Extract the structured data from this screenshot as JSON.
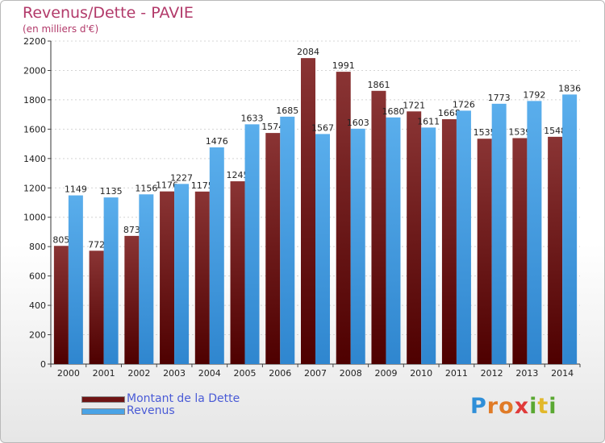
{
  "header": {
    "title": "Revenus/Dette - PAVIE",
    "subtitle": "(en milliers d'€)"
  },
  "legend": {
    "items": [
      {
        "label": "Montant de la Dette",
        "color": "#6e1414"
      },
      {
        "label": "Revenus",
        "color": "#4aa3e6"
      }
    ]
  },
  "logo": {
    "letters": [
      {
        "ch": "P",
        "color": "#2f8fd8"
      },
      {
        "ch": "r",
        "color": "#e07b27"
      },
      {
        "ch": "o",
        "color": "#e07b27"
      },
      {
        "ch": "x",
        "color": "#e03a3a"
      },
      {
        "ch": "i",
        "color": "#5aa832"
      },
      {
        "ch": "t",
        "color": "#e2b82b"
      },
      {
        "ch": "i",
        "color": "#5aa832"
      }
    ]
  },
  "chart_data": {
    "type": "bar",
    "title": "Revenus/Dette - PAVIE",
    "subtitle": "(en milliers d'€)",
    "categories": [
      "2000",
      "2001",
      "2002",
      "2003",
      "2004",
      "2005",
      "2006",
      "2007",
      "2008",
      "2009",
      "2010",
      "2011",
      "2012",
      "2013",
      "2014"
    ],
    "series": [
      {
        "name": "Montant de la Dette",
        "color": "#6e1414",
        "values": [
          805,
          772,
          873,
          1176,
          1175,
          1245,
          1574,
          2084,
          1991,
          1861,
          1721,
          1668,
          1535,
          1539,
          1548
        ],
        "labels": [
          "805",
          "772",
          "873",
          "1176",
          "1175",
          "1245",
          "1574",
          "2084",
          "1991",
          "1861",
          "1721",
          "1668",
          "1535",
          "1539",
          "1548"
        ]
      },
      {
        "name": "Revenus",
        "color": "#4aa3e6",
        "values": [
          1149,
          1135,
          1156,
          1227,
          1476,
          1633,
          1685,
          1567,
          1603,
          1680,
          1611,
          1726,
          1773,
          1792,
          1836
        ],
        "labels": [
          "1149",
          "1135",
          "1156",
          "1227",
          "1476",
          "1633",
          "1685",
          "1567",
          "1603",
          "1680",
          "1611",
          "1726",
          "1773",
          "1792",
          "1836"
        ]
      }
    ],
    "ylim": [
      0,
      2200
    ],
    "yticks": [
      0,
      200,
      400,
      600,
      800,
      1000,
      1200,
      1400,
      1600,
      1800,
      2000,
      2200
    ],
    "grid": true,
    "legend_position": "bottom-left"
  }
}
